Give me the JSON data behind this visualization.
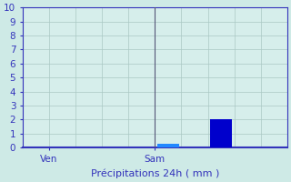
{
  "title": "",
  "xlabel": "Précipitations 24h ( mm )",
  "ylim": [
    0,
    10
  ],
  "background_color": "#ceeae6",
  "plot_bg_color": "#d6eeeb",
  "grid_color": "#aac8c4",
  "axis_color": "#3333bb",
  "bar_color_dark": "#0000cc",
  "bar_color_light": "#2288ff",
  "xlabel_fontsize": 8,
  "tick_fontsize": 7.5,
  "label_color": "#3333bb",
  "num_cols": 10,
  "ven_col": 1,
  "sam_col": 5,
  "separator_col": 5,
  "bar1_col": 5,
  "bar1_val": 0.3,
  "bar2_col": 7,
  "bar2_val": 2.0
}
